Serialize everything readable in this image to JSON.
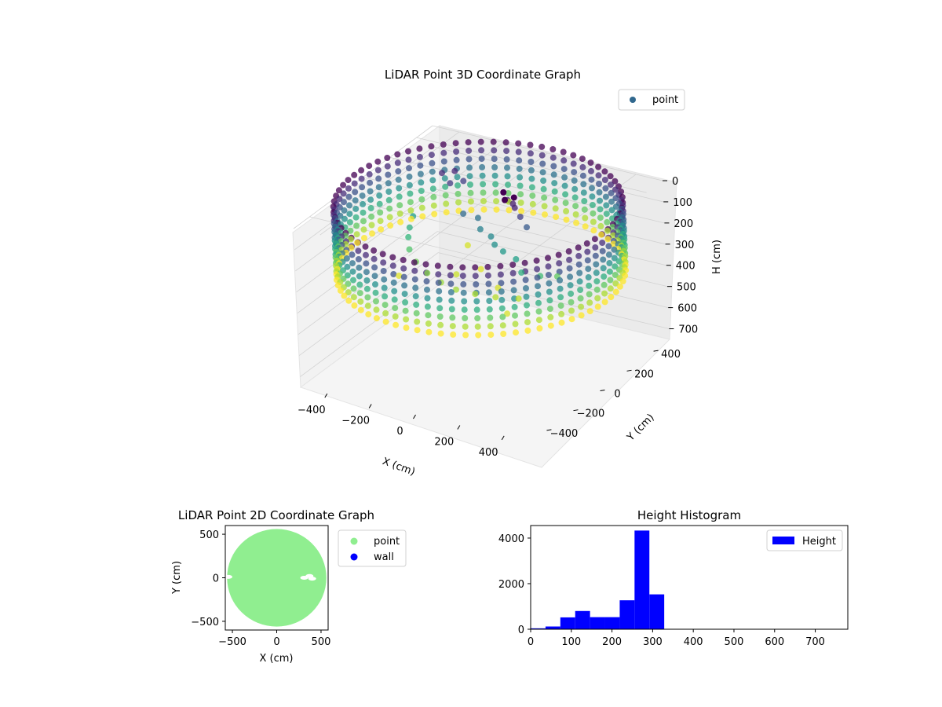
{
  "colors": {
    "point_legend_3d": "#31688e",
    "point_2d": "#90ee90",
    "wall_2d": "#0000ff",
    "hist_bar": "#0000ff",
    "pane_fill": "#f2f2f2",
    "grid": "#d2d2d2",
    "low_z": "#440154",
    "mid_z": "#21918c",
    "high_z": "#d2e21b"
  },
  "chart_data": [
    {
      "type": "scatter",
      "projection": "3d",
      "title": "LiDAR Point 3D Coordinate Graph",
      "xlabel": "X (cm)",
      "ylabel": "Y (cm)",
      "zlabel": "H (cm)",
      "xticks": [
        -400,
        -200,
        0,
        200,
        400
      ],
      "yticks": [
        -400,
        -200,
        0,
        200,
        400
      ],
      "zticks": [
        0,
        100,
        200,
        300,
        400,
        500,
        600,
        700
      ],
      "xlim": [
        -520,
        520
      ],
      "ylim": [
        -520,
        520
      ],
      "zlim": [
        0,
        750
      ],
      "z_inverted": true,
      "colormap": "viridis",
      "legend": {
        "entries": [
          "point"
        ],
        "location": "upper-right"
      },
      "grid": true,
      "series": [
        {
          "name": "point",
          "description_shape": "cylindrical wall ring of points, radius ~560 cm, heights ~10-320 cm, plus interior floor and object clusters",
          "points": [
            [
              -310,
              240,
              40
            ],
            [
              -270,
              270,
              35
            ],
            [
              -250,
              200,
              55
            ],
            [
              -220,
              250,
              60
            ],
            [
              60,
              120,
              20
            ],
            [
              90,
              110,
              25
            ],
            [
              110,
              90,
              30
            ],
            [
              140,
              80,
              60
            ],
            [
              180,
              60,
              90
            ],
            [
              -120,
              80,
              110
            ],
            [
              -60,
              90,
              120
            ],
            [
              -20,
              40,
              140
            ],
            [
              40,
              20,
              150
            ],
            [
              80,
              -20,
              160
            ],
            [
              130,
              -40,
              170
            ],
            [
              200,
              -60,
              180
            ],
            [
              260,
              -120,
              200
            ],
            [
              320,
              -80,
              220
            ],
            [
              360,
              -20,
              240
            ],
            [
              -350,
              80,
              180
            ],
            [
              -330,
              20,
              200
            ],
            [
              -300,
              -40,
              210
            ],
            [
              -260,
              -100,
              230
            ],
            [
              -200,
              -150,
              250
            ],
            [
              -120,
              -200,
              260
            ],
            [
              -40,
              -230,
              270
            ],
            [
              40,
              -250,
              275
            ],
            [
              120,
              -240,
              280
            ],
            [
              200,
              -220,
              285
            ],
            [
              280,
              -180,
              290
            ],
            [
              -150,
              150,
              300
            ],
            [
              0,
              0,
              305
            ],
            [
              150,
              -120,
              300
            ],
            [
              -250,
              -200,
              305
            ],
            [
              300,
              -300,
              300
            ],
            [
              -50,
              -100,
              295
            ]
          ]
        }
      ]
    },
    {
      "type": "scatter",
      "title": "LiDAR Point 2D Coordinate Graph",
      "xlabel": "X (cm)",
      "ylabel": "Y (cm)",
      "xticks": [
        -500,
        0,
        500
      ],
      "yticks": [
        -500,
        0,
        500
      ],
      "xlim": [
        -580,
        580
      ],
      "ylim": [
        -600,
        600
      ],
      "legend": {
        "entries": [
          "point",
          "wall"
        ],
        "location": "outside-right"
      },
      "series": [
        {
          "name": "point",
          "shape": "filled disc",
          "center": [
            0,
            0
          ],
          "radius": 560
        },
        {
          "name": "wall",
          "points": []
        }
      ],
      "gaps": [
        [
          310,
          0
        ],
        [
          370,
          20
        ],
        [
          400,
          -10
        ],
        [
          -545,
          10
        ]
      ]
    },
    {
      "type": "bar",
      "title": "Height Histogram",
      "xlabel": "",
      "ylabel": "",
      "xticks": [
        0,
        100,
        200,
        300,
        400,
        500,
        600,
        700
      ],
      "yticks": [
        0,
        2000,
        4000
      ],
      "xlim": [
        0,
        780
      ],
      "ylim": [
        0,
        4550
      ],
      "legend": {
        "entries": [
          "Height"
        ],
        "location": "upper-right"
      },
      "bin_width": 36.5,
      "bin_edges_start": 0,
      "series": [
        {
          "name": "Height",
          "values": [
            40,
            120,
            520,
            800,
            530,
            530,
            1270,
            4330,
            1530,
            0,
            0,
            0,
            0,
            0,
            0,
            0,
            0,
            0,
            0,
            0,
            2
          ]
        }
      ]
    }
  ]
}
